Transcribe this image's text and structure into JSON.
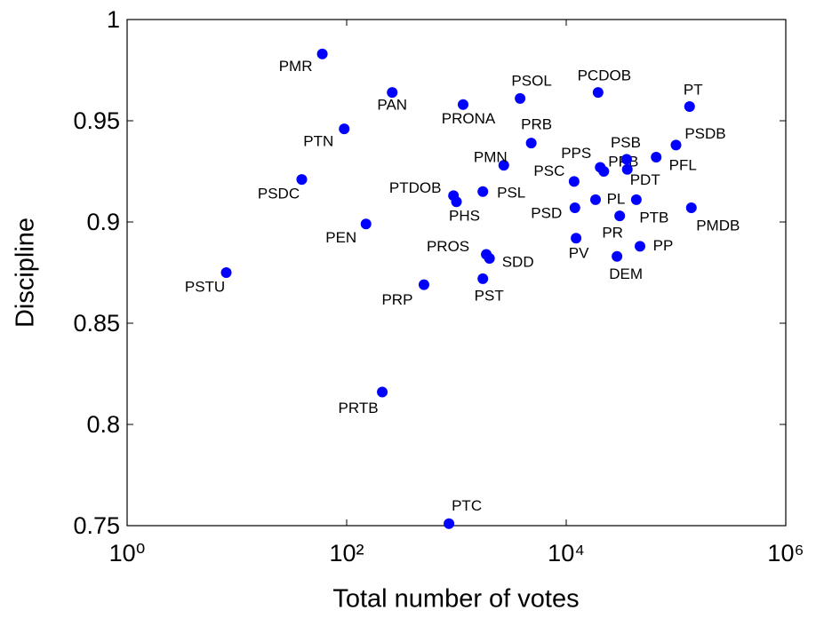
{
  "chart_data": {
    "type": "scatter",
    "x_label": "Total number of votes",
    "y_label": "Discipline",
    "color": "#0000ff",
    "xscale": "log",
    "xlim": [
      1,
      1000000
    ],
    "ylim": [
      0.75,
      1
    ],
    "xticks": [
      {
        "value": 1,
        "label": "10⁰"
      },
      {
        "value": 100,
        "label": "10²"
      },
      {
        "value": 10000,
        "label": "10⁴"
      },
      {
        "value": 1000000,
        "label": "10⁶"
      }
    ],
    "yticks": [
      0.75,
      0.8,
      0.85,
      0.9,
      0.95,
      1
    ],
    "labels": [
      "PMR",
      "PAN",
      "PTN",
      "PSDC",
      "PEN",
      "PSTU",
      "PRP",
      "PRTB",
      "PTC",
      "PRONA",
      "PSOL",
      "PCDOB",
      "PT",
      "PRB",
      "PMN",
      "PPS",
      "PPB",
      "PSB",
      "PDT",
      "PSDB",
      "PFL",
      "PTDOB",
      "PHS",
      "PSL",
      "PSC",
      "PL",
      "PSD",
      "PTB",
      "PMDB",
      "PR",
      "PP",
      "PV",
      "DEM",
      "PROS",
      "SDD",
      "PST"
    ],
    "x": [
      60,
      260,
      95,
      39,
      150,
      8,
      506,
      211,
      855,
      1150,
      3800,
      19500,
      133000,
      4800,
      2700,
      20400,
      22000,
      35500,
      36000,
      100000,
      66000,
      940,
      1000,
      1740,
      11800,
      18500,
      12000,
      43500,
      138000,
      30700,
      47000,
      12300,
      29000,
      1870,
      2000,
      1740
    ],
    "y": [
      0.983,
      0.964,
      0.946,
      0.921,
      0.899,
      0.875,
      0.869,
      0.816,
      0.751,
      0.958,
      0.961,
      0.964,
      0.957,
      0.939,
      0.928,
      0.927,
      0.925,
      0.931,
      0.926,
      0.938,
      0.932,
      0.913,
      0.91,
      0.915,
      0.92,
      0.911,
      0.907,
      0.911,
      0.907,
      0.903,
      0.888,
      0.892,
      0.883,
      0.884,
      0.882,
      0.872
    ]
  }
}
